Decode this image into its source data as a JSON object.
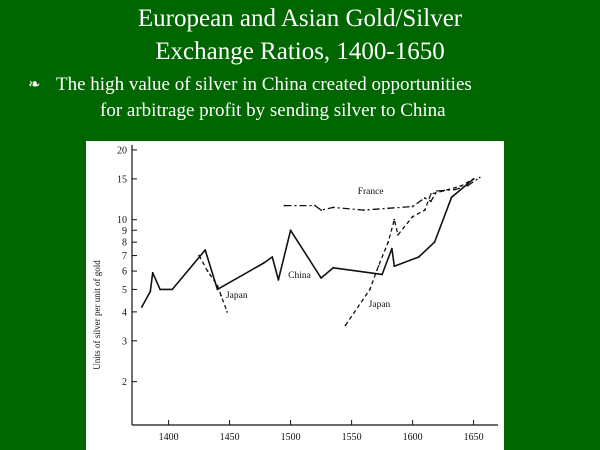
{
  "slide": {
    "title_line1": "European and Asian Gold/Silver",
    "title_line2": "Exchange Ratios, 1400-1650",
    "bullet_glyph": "❧",
    "bullet_line1": "The high value of silver in China created opportunities",
    "bullet_line2": "for arbitrage profit by sending silver to China"
  },
  "colors": {
    "background": "#006600",
    "text": "#ffffff",
    "chart_background": "#ffffff",
    "ink": "#111111"
  },
  "chart_data": {
    "type": "line",
    "title": "",
    "ylabel": "Units of silver per unit of gold",
    "xlabel": "",
    "y_scale": "log",
    "xlim": [
      1370,
      1670
    ],
    "ylim": [
      1.3,
      21
    ],
    "x_ticks": [
      1400,
      1450,
      1500,
      1550,
      1600,
      1650
    ],
    "y_ticks": [
      2,
      3,
      4,
      5,
      6,
      7,
      8,
      9,
      10,
      15,
      20
    ],
    "grid": false,
    "series": [
      {
        "name": "China",
        "style": "solid",
        "points": [
          [
            1378,
            4.2
          ],
          [
            1385,
            4.9
          ],
          [
            1387,
            5.9
          ],
          [
            1393,
            5.0
          ],
          [
            1403,
            5.0
          ],
          [
            1430,
            7.4
          ],
          [
            1440,
            5.0
          ],
          [
            1478,
            6.5
          ],
          [
            1485,
            6.9
          ],
          [
            1490,
            5.5
          ],
          [
            1500,
            9.0
          ],
          [
            1525,
            5.6
          ],
          [
            1535,
            6.2
          ],
          [
            1575,
            5.8
          ],
          [
            1583,
            7.5
          ],
          [
            1585,
            6.3
          ],
          [
            1605,
            6.9
          ],
          [
            1618,
            8.0
          ],
          [
            1632,
            12.5
          ],
          [
            1650,
            15.0
          ]
        ]
      },
      {
        "name": "France",
        "style": "dash-dot",
        "points": [
          [
            1495,
            11.5
          ],
          [
            1520,
            11.5
          ],
          [
            1525,
            11.0
          ],
          [
            1535,
            11.3
          ],
          [
            1560,
            11.0
          ],
          [
            1580,
            11.2
          ],
          [
            1600,
            11.4
          ],
          [
            1610,
            12.4
          ],
          [
            1615,
            12.0
          ],
          [
            1620,
            13.3
          ],
          [
            1635,
            13.5
          ],
          [
            1645,
            14.0
          ],
          [
            1655,
            15.2
          ]
        ]
      },
      {
        "name": "Japan",
        "style": "dashed",
        "points": [
          [
            1425,
            7.0
          ],
          [
            1432,
            6.0
          ],
          [
            1440,
            5.2
          ],
          [
            1443,
            4.7
          ],
          [
            1448,
            4.0
          ]
        ]
      },
      {
        "name": "Japan",
        "style": "dashed",
        "points": [
          [
            1545,
            3.5
          ],
          [
            1565,
            5.0
          ],
          [
            1572,
            6.3
          ],
          [
            1580,
            8.0
          ],
          [
            1585,
            10.0
          ],
          [
            1588,
            8.6
          ],
          [
            1600,
            10.3
          ],
          [
            1610,
            11.0
          ],
          [
            1615,
            12.9
          ],
          [
            1625,
            13.3
          ],
          [
            1640,
            14.0
          ],
          [
            1650,
            15.0
          ]
        ]
      }
    ],
    "annotations": [
      {
        "text": "France",
        "x": 1555,
        "y": 12.9
      },
      {
        "text": "China",
        "x": 1498,
        "y": 5.6
      },
      {
        "text": "Japan",
        "x": 1447,
        "y": 4.6
      },
      {
        "text": "Japan",
        "x": 1564,
        "y": 4.2
      }
    ]
  }
}
